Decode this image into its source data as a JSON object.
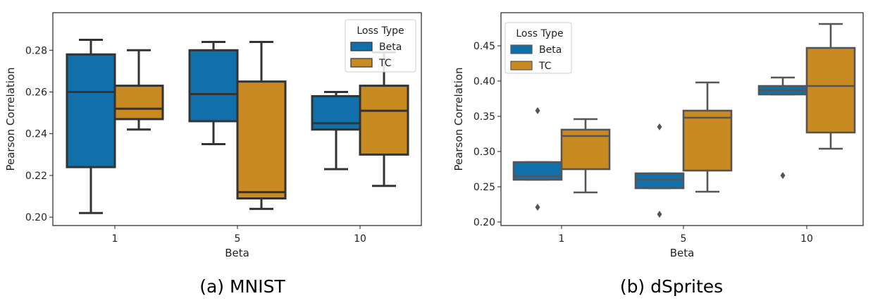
{
  "colors": {
    "Beta": "#1170aa",
    "TC": "#c98a21"
  },
  "chart_data": [
    {
      "type": "box",
      "caption": "(a) MNIST",
      "xlabel": "Beta",
      "ylabel": "Pearson Correlation",
      "categories": [
        "1",
        "5",
        "10"
      ],
      "ylim": [
        0.196,
        0.298
      ],
      "yticks": [
        "0.20",
        "0.22",
        "0.24",
        "0.26",
        "0.28"
      ],
      "legend": {
        "title": "Loss Type",
        "entries": [
          "Beta",
          "TC"
        ],
        "placement": "top-right"
      },
      "series": [
        {
          "name": "Beta",
          "boxes": [
            {
              "whislo": 0.202,
              "q1": 0.224,
              "med": 0.26,
              "q3": 0.278,
              "whishi": 0.285,
              "fliers": []
            },
            {
              "whislo": 0.235,
              "q1": 0.246,
              "med": 0.259,
              "q3": 0.28,
              "whishi": 0.284,
              "fliers": []
            },
            {
              "whislo": 0.223,
              "q1": 0.242,
              "med": 0.245,
              "q3": 0.258,
              "whishi": 0.26,
              "fliers": []
            }
          ]
        },
        {
          "name": "TC",
          "boxes": [
            {
              "whislo": 0.242,
              "q1": 0.247,
              "med": 0.252,
              "q3": 0.263,
              "whishi": 0.28,
              "fliers": []
            },
            {
              "whislo": 0.204,
              "q1": 0.209,
              "med": 0.212,
              "q3": 0.265,
              "whishi": 0.284,
              "fliers": []
            },
            {
              "whislo": 0.215,
              "q1": 0.23,
              "med": 0.251,
              "q3": 0.263,
              "whishi": 0.279,
              "fliers": []
            }
          ]
        }
      ]
    },
    {
      "type": "box",
      "caption": "(b) dSprites",
      "xlabel": "Beta",
      "ylabel": "Pearson Correlation",
      "categories": [
        "1",
        "5",
        "10"
      ],
      "ylim": [
        0.195,
        0.497
      ],
      "yticks": [
        "0.20",
        "0.25",
        "0.30",
        "0.35",
        "0.40",
        "0.45"
      ],
      "legend": {
        "title": "Loss Type",
        "entries": [
          "Beta",
          "TC"
        ],
        "placement": "top-left"
      },
      "series": [
        {
          "name": "Beta",
          "boxes": [
            {
              "whislo": 0.26,
              "q1": 0.26,
              "med": 0.265,
              "q3": 0.285,
              "whishi": 0.285,
              "fliers": [
                0.358,
                0.221
              ]
            },
            {
              "whislo": 0.248,
              "q1": 0.248,
              "med": 0.26,
              "q3": 0.269,
              "whishi": 0.269,
              "fliers": [
                0.335,
                0.211
              ]
            },
            {
              "whislo": 0.381,
              "q1": 0.381,
              "med": 0.387,
              "q3": 0.393,
              "whishi": 0.405,
              "fliers": [
                0.266
              ]
            }
          ]
        },
        {
          "name": "TC",
          "boxes": [
            {
              "whislo": 0.242,
              "q1": 0.275,
              "med": 0.322,
              "q3": 0.331,
              "whishi": 0.346,
              "fliers": []
            },
            {
              "whislo": 0.243,
              "q1": 0.273,
              "med": 0.348,
              "q3": 0.358,
              "whishi": 0.398,
              "fliers": []
            },
            {
              "whislo": 0.304,
              "q1": 0.327,
              "med": 0.393,
              "q3": 0.447,
              "whishi": 0.481,
              "fliers": []
            }
          ]
        }
      ]
    }
  ]
}
